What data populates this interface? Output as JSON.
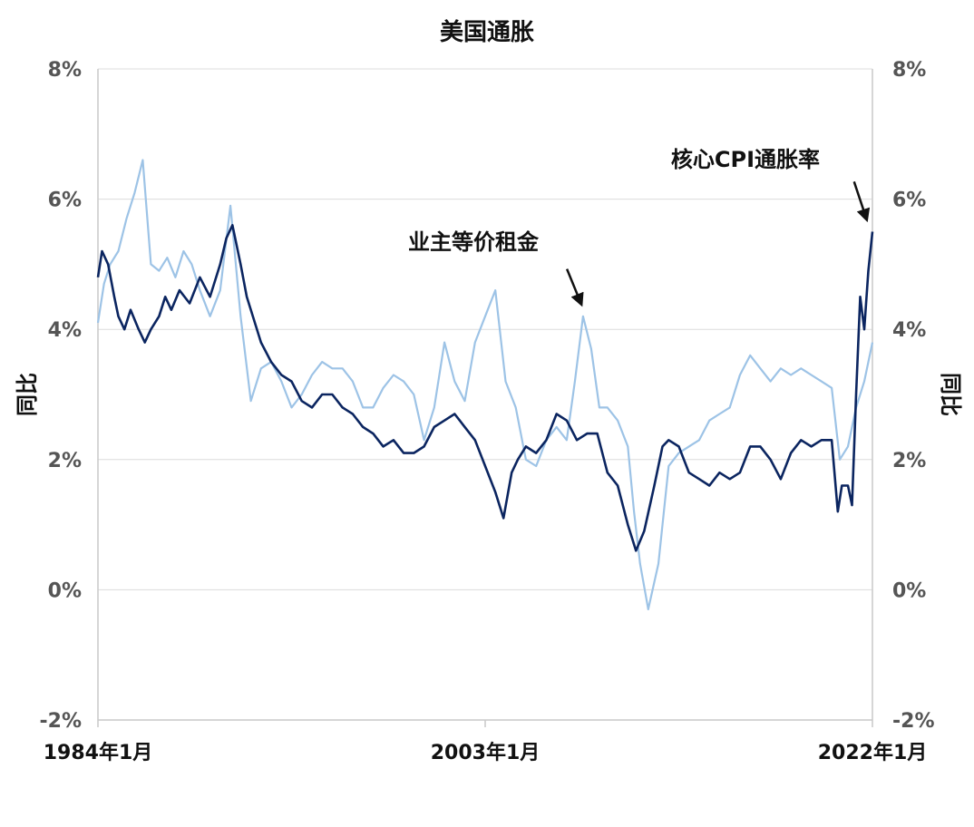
{
  "chart_data": {
    "type": "line",
    "title": "美国通胀",
    "ylabel_left": "同比",
    "ylabel_right": "同比",
    "ylim": [
      -2,
      8
    ],
    "yticks": [
      "8%",
      "6%",
      "4%",
      "2%",
      "0%",
      "-2%"
    ],
    "ytick_values": [
      8,
      6,
      4,
      2,
      0,
      -2
    ],
    "xlim": [
      1984.0,
      2022.0
    ],
    "xtick_labels": [
      "1984年1月",
      "2003年1月",
      "2022年1月"
    ],
    "xtick_values": [
      1984.0,
      2003.0,
      2022.0
    ],
    "grid": true,
    "annotations": [
      {
        "text": "业主等价租金",
        "series": "owners_equivalent_rent",
        "target_x": 2007.9,
        "target_y": 4.3
      },
      {
        "text": "核心CPI通胀率",
        "series": "core_cpi",
        "target_x": 2021.9,
        "target_y": 5.6
      }
    ],
    "series": [
      {
        "id": "core_cpi",
        "color": "#0b2560",
        "x": [
          1984.0,
          1984.2,
          1984.5,
          1984.8,
          1985.0,
          1985.3,
          1985.6,
          1986.0,
          1986.3,
          1986.6,
          1987.0,
          1987.3,
          1987.6,
          1988.0,
          1988.5,
          1989.0,
          1989.5,
          1990.0,
          1990.3,
          1990.6,
          1991.0,
          1991.3,
          1991.6,
          1992.0,
          1992.5,
          1993.0,
          1993.5,
          1994.0,
          1994.5,
          1995.0,
          1995.5,
          1996.0,
          1996.5,
          1997.0,
          1997.5,
          1998.0,
          1998.5,
          1999.0,
          1999.5,
          2000.0,
          2000.5,
          2001.0,
          2001.5,
          2002.0,
          2002.5,
          2003.0,
          2003.5,
          2003.9,
          2004.3,
          2004.6,
          2005.0,
          2005.5,
          2006.0,
          2006.5,
          2007.0,
          2007.5,
          2008.0,
          2008.5,
          2009.0,
          2009.5,
          2010.0,
          2010.4,
          2010.8,
          2011.3,
          2011.7,
          2012.0,
          2012.5,
          2013.0,
          2013.5,
          2014.0,
          2014.5,
          2015.0,
          2015.5,
          2016.0,
          2016.5,
          2017.0,
          2017.5,
          2018.0,
          2018.5,
          2019.0,
          2019.5,
          2020.0,
          2020.3,
          2020.5,
          2020.8,
          2021.0,
          2021.2,
          2021.4,
          2021.6,
          2021.8,
          2022.0
        ],
        "values": [
          4.8,
          5.2,
          5.0,
          4.5,
          4.2,
          4.0,
          4.3,
          4.0,
          3.8,
          4.0,
          4.2,
          4.5,
          4.3,
          4.6,
          4.4,
          4.8,
          4.5,
          5.0,
          5.4,
          5.6,
          5.0,
          4.5,
          4.2,
          3.8,
          3.5,
          3.3,
          3.2,
          2.9,
          2.8,
          3.0,
          3.0,
          2.8,
          2.7,
          2.5,
          2.4,
          2.2,
          2.3,
          2.1,
          2.1,
          2.2,
          2.5,
          2.6,
          2.7,
          2.5,
          2.3,
          1.9,
          1.5,
          1.1,
          1.8,
          2.0,
          2.2,
          2.1,
          2.3,
          2.7,
          2.6,
          2.3,
          2.4,
          2.4,
          1.8,
          1.6,
          1.0,
          0.6,
          0.9,
          1.6,
          2.2,
          2.3,
          2.2,
          1.8,
          1.7,
          1.6,
          1.8,
          1.7,
          1.8,
          2.2,
          2.2,
          2.0,
          1.7,
          2.1,
          2.3,
          2.2,
          2.3,
          2.3,
          1.2,
          1.6,
          1.6,
          1.3,
          3.0,
          4.5,
          4.0,
          4.9,
          5.5
        ]
      },
      {
        "id": "owners_equivalent_rent",
        "color": "#9dc3e6",
        "x": [
          1984.0,
          1984.3,
          1984.6,
          1985.0,
          1985.4,
          1985.8,
          1986.2,
          1986.6,
          1987.0,
          1987.4,
          1987.8,
          1988.2,
          1988.6,
          1989.0,
          1989.5,
          1990.0,
          1990.5,
          1991.0,
          1991.5,
          1992.0,
          1992.5,
          1993.0,
          1993.5,
          1994.0,
          1994.5,
          1995.0,
          1995.5,
          1996.0,
          1996.5,
          1997.0,
          1997.5,
          1998.0,
          1998.5,
          1999.0,
          1999.5,
          2000.0,
          2000.5,
          2001.0,
          2001.5,
          2002.0,
          2002.5,
          2003.0,
          2003.5,
          2004.0,
          2004.5,
          2005.0,
          2005.5,
          2006.0,
          2006.5,
          2007.0,
          2007.4,
          2007.8,
          2008.2,
          2008.6,
          2009.0,
          2009.5,
          2010.0,
          2010.3,
          2010.6,
          2011.0,
          2011.5,
          2012.0,
          2012.5,
          2013.0,
          2013.5,
          2014.0,
          2014.5,
          2015.0,
          2015.5,
          2016.0,
          2016.5,
          2017.0,
          2017.5,
          2018.0,
          2018.5,
          2019.0,
          2019.5,
          2020.0,
          2020.4,
          2020.8,
          2021.2,
          2021.6,
          2022.0
        ],
        "values": [
          4.1,
          4.7,
          5.0,
          5.2,
          5.7,
          6.1,
          6.6,
          5.0,
          4.9,
          5.1,
          4.8,
          5.2,
          5.0,
          4.6,
          4.2,
          4.6,
          5.9,
          4.2,
          2.9,
          3.4,
          3.5,
          3.2,
          2.8,
          3.0,
          3.3,
          3.5,
          3.4,
          3.4,
          3.2,
          2.8,
          2.8,
          3.1,
          3.3,
          3.2,
          3.0,
          2.3,
          2.8,
          3.8,
          3.2,
          2.9,
          3.8,
          4.2,
          4.6,
          3.2,
          2.8,
          2.0,
          1.9,
          2.3,
          2.5,
          2.3,
          3.2,
          4.2,
          3.7,
          2.8,
          2.8,
          2.6,
          2.2,
          1.2,
          0.4,
          -0.3,
          0.4,
          1.9,
          2.1,
          2.2,
          2.3,
          2.6,
          2.7,
          2.8,
          3.3,
          3.6,
          3.4,
          3.2,
          3.4,
          3.3,
          3.4,
          3.3,
          3.2,
          3.1,
          2.0,
          2.2,
          2.8,
          3.2,
          3.8
        ]
      }
    ]
  }
}
